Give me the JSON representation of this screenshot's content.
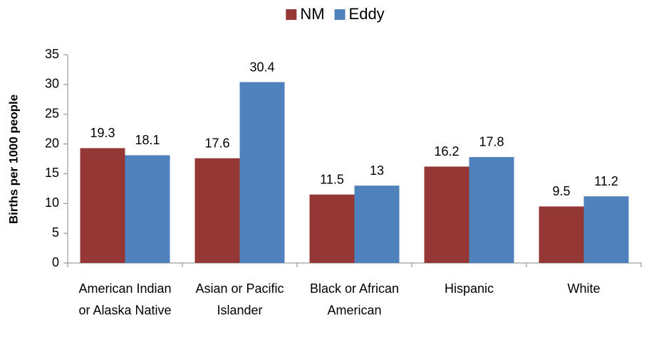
{
  "chart_data": {
    "type": "bar",
    "ylabel": "Births per 1000 people",
    "categories": [
      "American Indian or Alaska Native",
      "Asian or Pacific Islander",
      "Black or African American",
      "Hispanic",
      "White"
    ],
    "series": [
      {
        "name": "NM",
        "color": "#953735",
        "values": [
          19.3,
          17.6,
          11.5,
          16.2,
          9.5
        ]
      },
      {
        "name": "Eddy",
        "color": "#4f81bd",
        "values": [
          18.1,
          30.4,
          13,
          17.8,
          11.2
        ]
      }
    ],
    "ylim": [
      0,
      35
    ],
    "yticks": [
      0,
      5,
      10,
      15,
      20,
      25,
      30,
      35
    ],
    "grid": false,
    "legend": "top"
  }
}
